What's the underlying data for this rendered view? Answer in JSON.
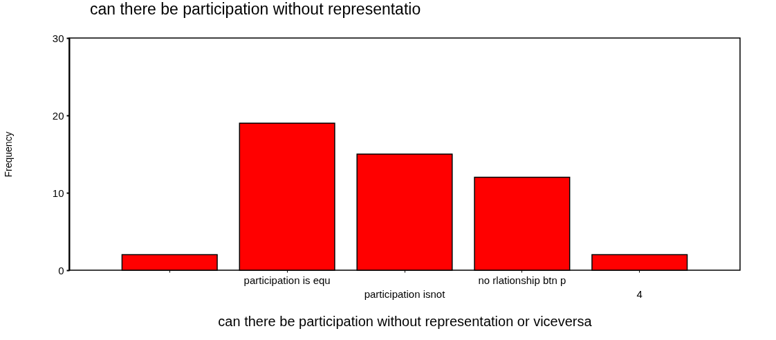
{
  "chart_data": {
    "type": "bar",
    "title": "can there be participation without representatio",
    "xlabel": "can there be participation without representation or viceversa",
    "ylabel": "Frequency",
    "categories": [
      null,
      "participation is equ",
      "participation isnot",
      "no rlationship btn p",
      "4"
    ],
    "values": [
      2,
      19,
      15,
      12,
      2
    ],
    "color": "#ff0000",
    "ylim": [
      0,
      30
    ],
    "yticks": [
      0,
      10,
      20,
      30
    ],
    "grid": false
  }
}
